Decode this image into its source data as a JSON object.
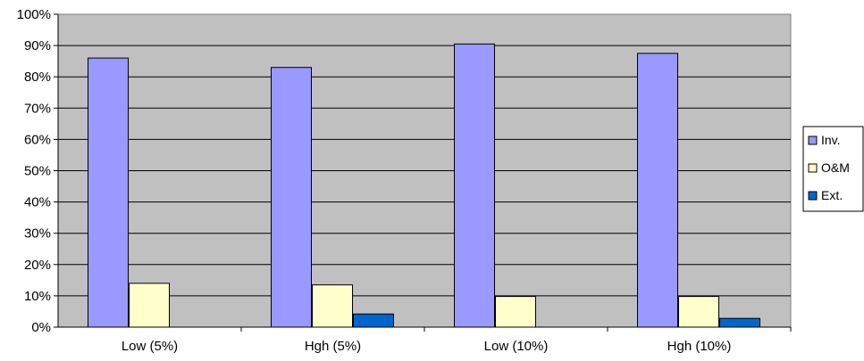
{
  "chart_data": {
    "type": "bar",
    "title": "",
    "xlabel": "",
    "ylabel": "",
    "categories": [
      "Low (5%)",
      "Hgh (5%)",
      "Low (10%)",
      "Hgh (10%)"
    ],
    "series": [
      {
        "name": "Inv.",
        "values": [
          86,
          83,
          90.5,
          87.5
        ],
        "color": "#9999ff"
      },
      {
        "name": "O&M",
        "values": [
          14,
          13.5,
          9.8,
          9.8
        ],
        "color": "#ffffcc"
      },
      {
        "name": "Ext.",
        "values": [
          0,
          4.2,
          0,
          2.8
        ],
        "color": "#0066cc"
      }
    ],
    "ylim": [
      0,
      100
    ],
    "yticks": [
      "0%",
      "10%",
      "20%",
      "30%",
      "40%",
      "50%",
      "60%",
      "70%",
      "80%",
      "90%",
      "100%"
    ],
    "grid": true,
    "plot_background": "#c0c0c0",
    "legend_position": "right"
  }
}
